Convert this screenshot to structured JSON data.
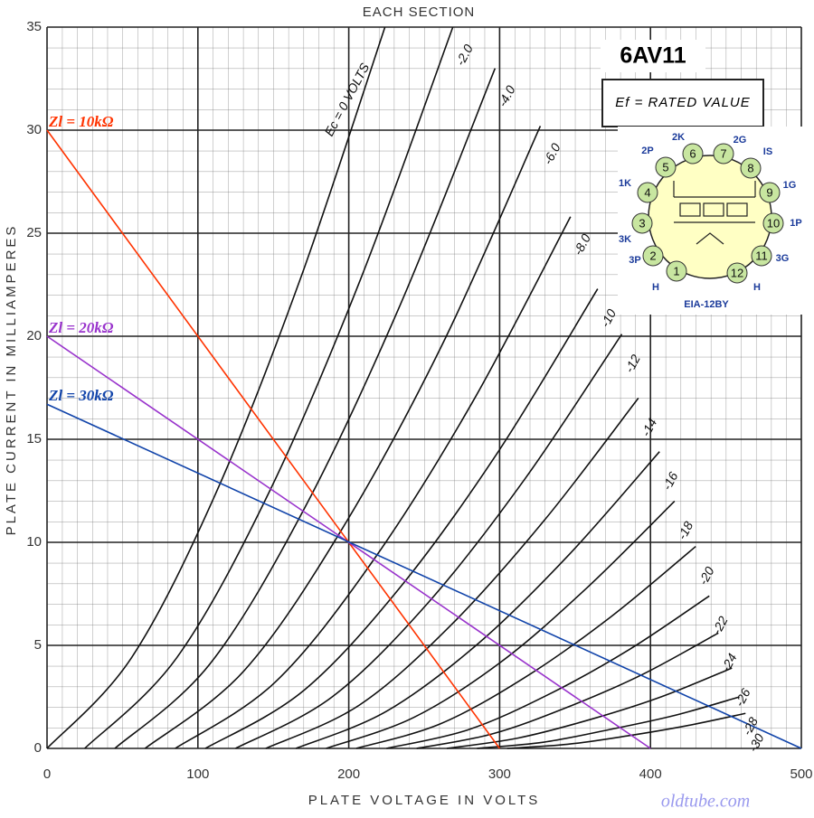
{
  "chart_data": {
    "type": "line",
    "title": "EACH SECTION",
    "x_label": "PLATE VOLTAGE IN VOLTS",
    "y_label": "PLATE CURRENT IN MILLIAMPERES",
    "xlim": [
      0,
      500
    ],
    "xticks": [
      0,
      100,
      200,
      300,
      400,
      500
    ],
    "ylim": [
      0,
      35
    ],
    "yticks": [
      0,
      5,
      10,
      15,
      20,
      25,
      30,
      35
    ],
    "grid": true,
    "series": [
      {
        "name": "Ec = 0 VOLTS",
        "color": "#111111",
        "x": [
          0,
          56,
          112,
          168,
          224
        ],
        "values": [
          0,
          4.4,
          12.4,
          22.8,
          35
        ]
      },
      {
        "name": "-2.0",
        "color": "#111111",
        "x": [
          25,
          86,
          147,
          208,
          269
        ],
        "values": [
          0,
          4.4,
          12.4,
          22.8,
          35
        ]
      },
      {
        "name": "-4.0",
        "color": "#111111",
        "x": [
          45,
          108,
          171,
          234,
          297
        ],
        "values": [
          0,
          4.1,
          11.7,
          21.5,
          33
        ]
      },
      {
        "name": "-6.0",
        "color": "#111111",
        "x": [
          65,
          131,
          196,
          262,
          327
        ],
        "values": [
          0,
          3.8,
          10.7,
          19.6,
          30.2
        ]
      },
      {
        "name": "-8.0",
        "color": "#111111",
        "x": [
          85,
          151,
          216,
          282,
          347
        ],
        "values": [
          0,
          3.2,
          9.1,
          16.8,
          25.8
        ]
      },
      {
        "name": "-10",
        "color": "#111111",
        "x": [
          105,
          170,
          235,
          300,
          365
        ],
        "values": [
          0,
          2.8,
          7.9,
          14.5,
          22.3
        ]
      },
      {
        "name": "-12",
        "color": "#111111",
        "x": [
          125,
          189,
          253,
          317,
          381
        ],
        "values": [
          0,
          2.5,
          7.1,
          13.1,
          20.1
        ]
      },
      {
        "name": "-14",
        "color": "#111111",
        "x": [
          145,
          207,
          268,
          330,
          392
        ],
        "values": [
          0,
          2.1,
          6.0,
          11.1,
          17
        ]
      },
      {
        "name": "-16",
        "color": "#111111",
        "x": [
          165,
          225,
          286,
          346,
          406
        ],
        "values": [
          0,
          1.8,
          5.1,
          9.4,
          14.4
        ]
      },
      {
        "name": "-18",
        "color": "#111111",
        "x": [
          185,
          243,
          301,
          358,
          416
        ],
        "values": [
          0,
          1.5,
          4.2,
          7.8,
          12
        ]
      },
      {
        "name": "-20",
        "color": "#111111",
        "x": [
          205,
          261,
          318,
          374,
          430
        ],
        "values": [
          0,
          1.2,
          3.5,
          6.4,
          9.8
        ]
      },
      {
        "name": "-22",
        "color": "#111111",
        "x": [
          225,
          279,
          332,
          386,
          439
        ],
        "values": [
          0,
          0.9,
          2.6,
          4.8,
          7.4
        ]
      },
      {
        "name": "-24",
        "color": "#111111",
        "x": [
          245,
          295,
          345,
          395,
          445
        ],
        "values": [
          0,
          0.7,
          2.0,
          3.6,
          5.6
        ]
      },
      {
        "name": "-26",
        "color": "#111111",
        "x": [
          265,
          312,
          360,
          407,
          454
        ],
        "values": [
          0,
          0.5,
          1.4,
          2.5,
          3.9
        ]
      },
      {
        "name": "-28",
        "color": "#111111",
        "x": [
          285,
          329,
          372,
          416,
          459
        ],
        "values": [
          0,
          0.3,
          0.9,
          1.6,
          2.5
        ]
      },
      {
        "name": "-30",
        "color": "#111111",
        "x": [
          305,
          345,
          384,
          424,
          463
        ],
        "values": [
          0,
          0.2,
          0.6,
          1.1,
          1.7
        ]
      },
      {
        "name": "Zl = 10kΩ",
        "color": "#ff3300",
        "load_line": true,
        "x": [
          0,
          300
        ],
        "values": [
          30,
          0
        ]
      },
      {
        "name": "Zl = 20kΩ",
        "color": "#9933cc",
        "load_line": true,
        "x": [
          0,
          400
        ],
        "values": [
          20,
          0
        ]
      },
      {
        "name": "Zl = 30kΩ",
        "color": "#1144aa",
        "load_line": true,
        "x": [
          0,
          500
        ],
        "values": [
          16.7,
          0
        ]
      }
    ],
    "annotations": {
      "tube": "6AV11",
      "heater_note": "Ef = RATED VALUE",
      "base": "EIA-12BY",
      "pins": [
        {
          "number": "1",
          "label": "H"
        },
        {
          "number": "2",
          "label": "3P"
        },
        {
          "number": "3",
          "label": "3K"
        },
        {
          "number": "4",
          "label": "1K"
        },
        {
          "number": "5",
          "label": "2P"
        },
        {
          "number": "6",
          "label": "2K"
        },
        {
          "number": "7",
          "label": "2G"
        },
        {
          "number": "8",
          "label": "IS"
        },
        {
          "number": "9",
          "label": "1G"
        },
        {
          "number": "10",
          "label": "1P"
        },
        {
          "number": "11",
          "label": "3G"
        },
        {
          "number": "12",
          "label": "H"
        }
      ],
      "watermark": "oldtube.com"
    }
  }
}
